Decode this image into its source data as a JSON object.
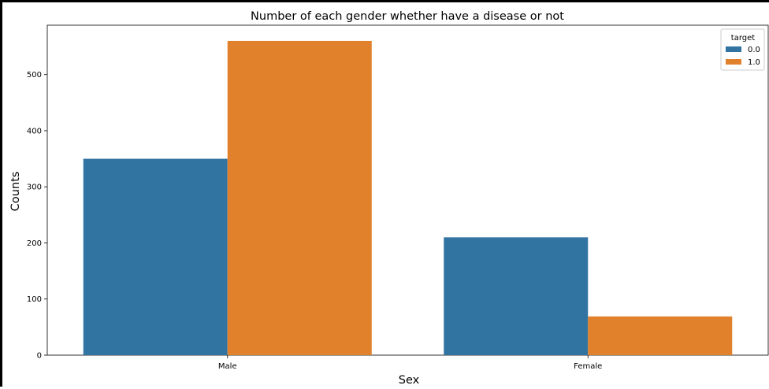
{
  "chart_data": {
    "type": "bar",
    "title": "Number of each gender whether have a disease or not",
    "xlabel": "Sex",
    "ylabel": "Counts",
    "categories": [
      "Male",
      "Female"
    ],
    "series": [
      {
        "name": "0.0",
        "values": [
          350,
          210
        ],
        "color": "#3274a1"
      },
      {
        "name": "1.0",
        "values": [
          560,
          69
        ],
        "color": "#e1812c"
      }
    ],
    "ylim": [
      0,
      588
    ],
    "yticks": [
      0,
      100,
      200,
      300,
      400,
      500
    ],
    "legend": {
      "title": "target",
      "placement": "top-right"
    },
    "grid": false
  }
}
